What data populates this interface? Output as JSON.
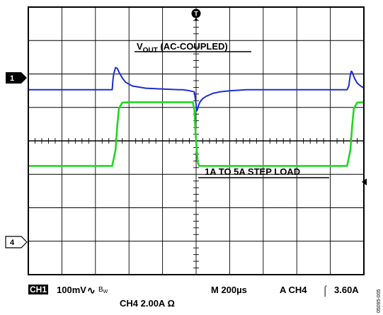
{
  "chart_data": {
    "type": "line",
    "title": "",
    "xlabel": "",
    "ylabel": "",
    "grid": true,
    "x_unit": "µs",
    "xlim": [
      0,
      2000
    ],
    "divisions": {
      "x": 10,
      "y": 8
    },
    "series": [
      {
        "name": "CH1",
        "color": "#1c2fd0",
        "label_before": "V",
        "label_sub": "OUT",
        "label_after": " (AC-COUPLED)",
        "x": [
          0,
          100,
          200,
          300,
          400,
          450,
          490,
          500,
          505,
          510,
          520,
          530,
          540,
          560,
          580,
          620,
          700,
          800,
          900,
          920,
          950,
          990,
          1000,
          1003,
          1008,
          1015,
          1025,
          1040,
          1060,
          1080,
          1100,
          1140,
          1200,
          1300,
          1500,
          1700,
          1800,
          1850,
          1900,
          1910,
          1915,
          1920,
          1925,
          1930,
          1945,
          1960,
          1980,
          2000
        ],
        "y": [
          0,
          0,
          0,
          0,
          0,
          0,
          0,
          0,
          30,
          45,
          60,
          58,
          48,
          32,
          20,
          10,
          4,
          2,
          0,
          0,
          -2,
          -6,
          -40,
          -58,
          -54,
          -42,
          -32,
          -24,
          -18,
          -14,
          -10,
          -6,
          -3,
          0,
          0,
          0,
          0,
          0,
          0,
          10,
          28,
          42,
          50,
          48,
          30,
          18,
          10,
          5
        ]
      },
      {
        "name": "CH4",
        "color": "#22d622",
        "label": "1A TO 5A STEP LOAD",
        "x": [
          0,
          100,
          200,
          300,
          400,
          500,
          520,
          530,
          540,
          560,
          600,
          800,
          900,
          980,
          990,
          1000,
          1010,
          1020,
          1040,
          1100,
          1300,
          1500,
          1700,
          1800,
          1900,
          1920,
          1930,
          1940,
          1960,
          2000
        ],
        "y": [
          5,
          5,
          5,
          5,
          5,
          5,
          4,
          2.5,
          1.4,
          1.02,
          1,
          1,
          1,
          1,
          1.5,
          3.5,
          4.8,
          5,
          5,
          5,
          5,
          5,
          5,
          5,
          5,
          4,
          2.5,
          1.4,
          1.02,
          1
        ]
      }
    ],
    "channel_markers": [
      {
        "label": "1",
        "level": 0
      },
      {
        "label": "4",
        "level": 0
      }
    ],
    "trigger_marker": "T",
    "annotations": []
  },
  "footer": {
    "ch1_badge": "CH1",
    "ch1_scale": "100mV",
    "bw_symbol": "∿",
    "bw_label": "B",
    "bw_sub": "W",
    "timebase": "M 200µs",
    "trigger": "A  CH4",
    "trigger_slope": "⌠",
    "trigger_level": "3.60A",
    "ch4_scale": "CH4  2.00A Ω",
    "figure_id": "05095-005"
  }
}
